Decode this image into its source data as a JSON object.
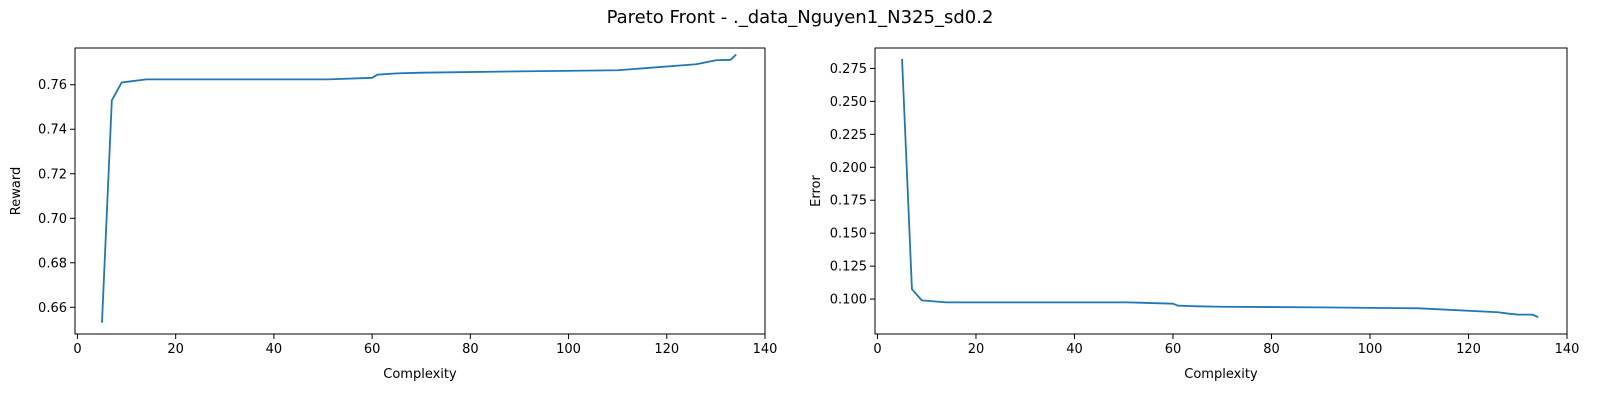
{
  "figure": {
    "title": "Pareto Front - ._data_Nguyen1_N325_sd0.2"
  },
  "chart_data": [
    {
      "type": "line",
      "title": "",
      "xlabel": "Complexity",
      "ylabel": "Reward",
      "xlim": [
        -0.5,
        140
      ],
      "ylim": [
        0.648,
        0.7765
      ],
      "xticks": [
        0,
        20,
        40,
        60,
        80,
        100,
        120,
        140
      ],
      "yticks": [
        0.66,
        0.68,
        0.7,
        0.72,
        0.74,
        0.76
      ],
      "ytick_labels": [
        "0.66",
        "0.68",
        "0.70",
        "0.72",
        "0.74",
        "0.76"
      ],
      "grid": false,
      "color": "#1f77b4",
      "series": [
        {
          "x": [
            5,
            7,
            9,
            14,
            51,
            60,
            61,
            65,
            70,
            90,
            110,
            126,
            128,
            130,
            133,
            134
          ],
          "y": [
            0.6535,
            0.753,
            0.761,
            0.7624,
            0.7624,
            0.7631,
            0.7645,
            0.7651,
            0.7654,
            0.766,
            0.7665,
            0.7692,
            0.7701,
            0.771,
            0.7712,
            0.7733
          ]
        }
      ]
    },
    {
      "type": "line",
      "title": "",
      "xlabel": "Complexity",
      "ylabel": "Error",
      "xlim": [
        -0.5,
        140
      ],
      "ylim": [
        0.0735,
        0.2905
      ],
      "xticks": [
        0,
        20,
        40,
        60,
        80,
        100,
        120,
        140
      ],
      "yticks": [
        0.1,
        0.125,
        0.15,
        0.175,
        0.2,
        0.225,
        0.25,
        0.275
      ],
      "ytick_labels": [
        "0.100",
        "0.125",
        "0.150",
        "0.175",
        "0.200",
        "0.225",
        "0.250",
        "0.275"
      ],
      "grid": false,
      "color": "#1f77b4",
      "series": [
        {
          "x": [
            5,
            7,
            9,
            14,
            51,
            60,
            61,
            65,
            70,
            90,
            110,
            126,
            128,
            130,
            133,
            134
          ],
          "y": [
            0.2815,
            0.1075,
            0.099,
            0.0975,
            0.0975,
            0.0965,
            0.095,
            0.0945,
            0.0942,
            0.0937,
            0.093,
            0.09,
            0.089,
            0.0882,
            0.0882,
            0.0865
          ]
        }
      ]
    }
  ]
}
